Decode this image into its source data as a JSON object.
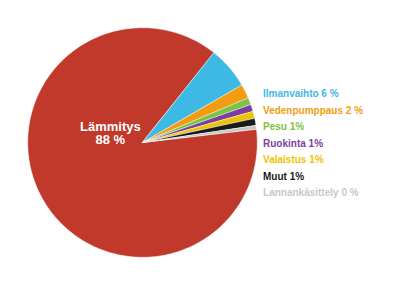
{
  "chart_data": {
    "type": "pie",
    "categories": [
      "Lämmitys",
      "Ilmanvaihto",
      "Vedenpumppaus",
      "Pesu",
      "Ruokinta",
      "Valaistus",
      "Muut",
      "Lannankäsittely"
    ],
    "values": [
      88,
      6,
      2,
      1,
      1,
      1,
      1,
      0.5
    ],
    "value_labels": [
      "Lämmitys\n88 %",
      "Ilmanvaihto 6 %",
      "Vedenpumppaus 2 %",
      "Pesu 1%",
      "Ruokinta 1%",
      "Valaistus 1%",
      "Muut 1%",
      "Lannankäsittely 0 %"
    ],
    "colors": [
      "#c0392b",
      "#3eb8e5",
      "#f39c12",
      "#7dc242",
      "#7b3f9e",
      "#f0c300",
      "#1a1a1a",
      "#c8c8c8"
    ],
    "data_labels": true
  }
}
